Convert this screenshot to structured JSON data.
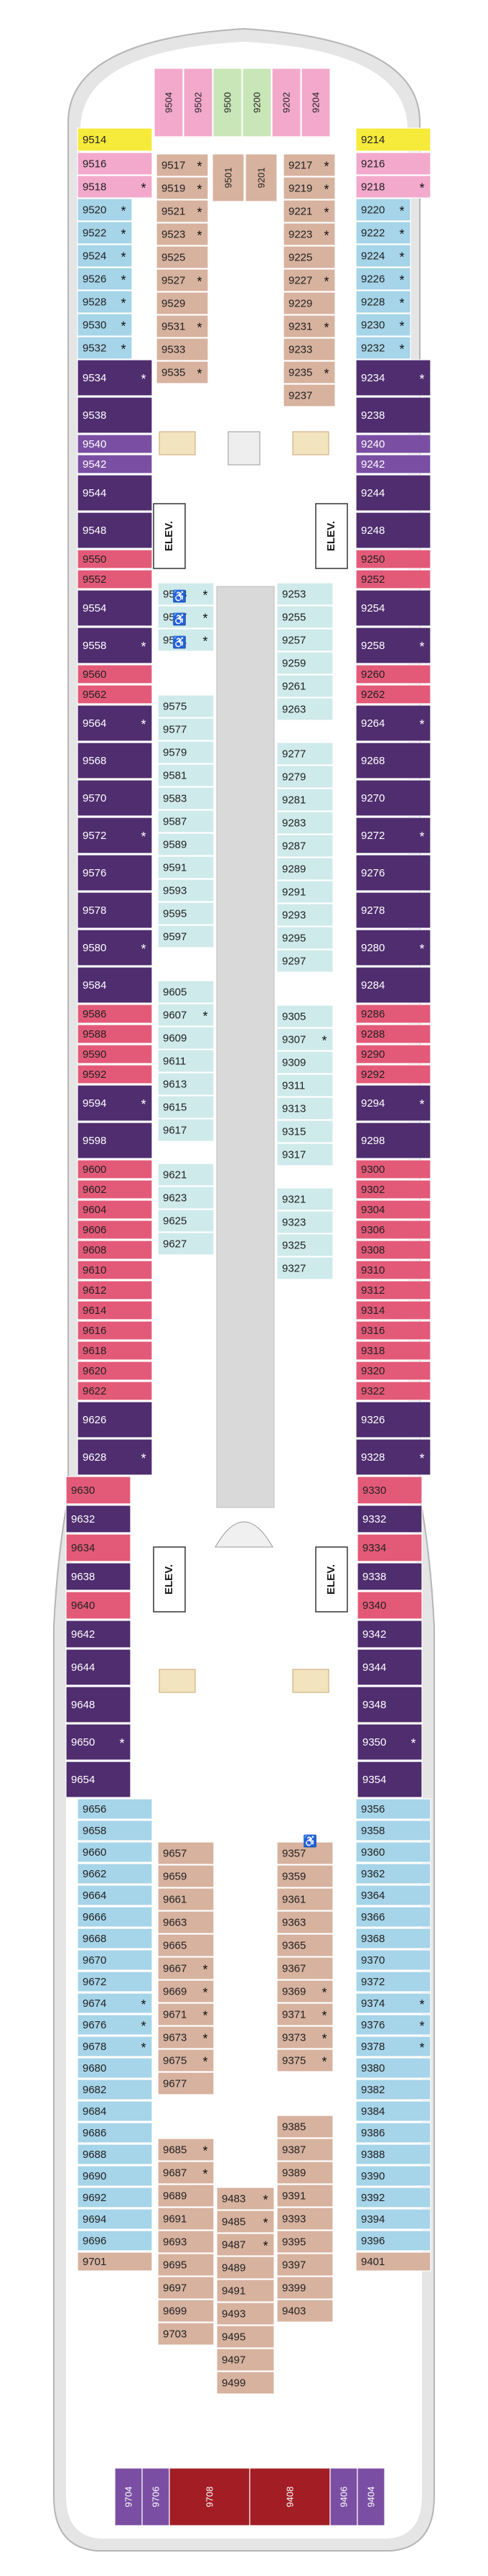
{
  "legend_colors": {
    "suite_purple": "#4f2d6f",
    "balcony_pink": "#e35a78",
    "oceanview_blue": "#a6d4e8",
    "interior_tan": "#d7b29f",
    "interior_light": "#cfeaea",
    "suite_violet": "#7a4fa3",
    "special_pink": "#f2a9cc",
    "special_green": "#c9e6b8",
    "special_yellow": "#f6ea3a",
    "special_red": "#a31d24",
    "hull_gray": "#e5e5e5"
  },
  "icon_names": [
    "accessible-icon",
    "suite-door-icon",
    "connecting-arrow-icon",
    "star-marker"
  ],
  "elevator_label": "ELEV.",
  "forward": {
    "front_cabins": [
      "9504",
      "9502",
      "9500",
      "9200",
      "9202",
      "9204"
    ],
    "yellow": [
      "9514",
      "9214"
    ],
    "port_pink": [
      "9516",
      "9518"
    ],
    "stbd_pink": [
      "9216",
      "9218"
    ],
    "port_blue": [
      "9520",
      "9522",
      "9524",
      "9526",
      "9528",
      "9530",
      "9532"
    ],
    "stbd_blue": [
      "9220",
      "9222",
      "9224",
      "9226",
      "9228",
      "9230",
      "9232"
    ],
    "inner_port": [
      "9517",
      "9519",
      "9521",
      "9523",
      "9525",
      "9527",
      "9529",
      "9531",
      "9533",
      "9535"
    ],
    "inner_stbd": [
      "9217",
      "9219",
      "9221",
      "9223",
      "9225",
      "9227",
      "9229",
      "9231",
      "9233",
      "9235",
      "9237"
    ],
    "center": [
      "9501",
      "9201"
    ]
  },
  "port_outer": [
    "9534",
    "9538",
    "9540",
    "9542",
    "9544",
    "9548",
    "9550",
    "9552",
    "9554",
    "9558",
    "9560",
    "9562",
    "9564",
    "9568",
    "9570",
    "9572",
    "9576",
    "9578",
    "9580",
    "9584",
    "9586",
    "9588",
    "9590",
    "9592",
    "9594",
    "9598",
    "9600",
    "9602",
    "9604",
    "9606",
    "9608",
    "9610",
    "9612",
    "9614",
    "9616",
    "9618",
    "9620",
    "9622",
    "9626",
    "9628",
    "9630",
    "9632",
    "9634",
    "9638",
    "9640",
    "9642",
    "9644",
    "9648",
    "9650",
    "9654",
    "9656",
    "9658",
    "9660",
    "9662",
    "9664",
    "9666",
    "9668",
    "9670",
    "9672",
    "9674",
    "9676",
    "9678",
    "9680",
    "9682",
    "9684",
    "9686",
    "9688",
    "9690",
    "9692",
    "9694",
    "9696",
    "9701"
  ],
  "stbd_outer": [
    "9234",
    "9238",
    "9240",
    "9242",
    "9244",
    "9248",
    "9250",
    "9252",
    "9254",
    "9258",
    "9260",
    "9262",
    "9264",
    "9268",
    "9270",
    "9272",
    "9276",
    "9278",
    "9280",
    "9284",
    "9286",
    "9288",
    "9290",
    "9292",
    "9294",
    "9298",
    "9300",
    "9302",
    "9304",
    "9306",
    "9308",
    "9310",
    "9312",
    "9314",
    "9316",
    "9318",
    "9320",
    "9322",
    "9326",
    "9328",
    "9330",
    "9332",
    "9334",
    "9338",
    "9340",
    "9342",
    "9344",
    "9348",
    "9350",
    "9354",
    "9356",
    "9358",
    "9360",
    "9362",
    "9364",
    "9366",
    "9368",
    "9370",
    "9372",
    "9374",
    "9376",
    "9378",
    "9380",
    "9382",
    "9384",
    "9386",
    "9388",
    "9390",
    "9392",
    "9394",
    "9396",
    "9401"
  ],
  "port_inner_mid": [
    "9553",
    "9557",
    "9561",
    "9575",
    "9577",
    "9579",
    "9581",
    "9583",
    "9587",
    "9589",
    "9591",
    "9593",
    "9595",
    "9597",
    "9605",
    "9607",
    "9609",
    "9611",
    "9613",
    "9615",
    "9617",
    "9621",
    "9623",
    "9625",
    "9627"
  ],
  "stbd_inner_mid": [
    "9253",
    "9255",
    "9257",
    "9259",
    "9261",
    "9263",
    "9277",
    "9279",
    "9281",
    "9283",
    "9287",
    "9289",
    "9291",
    "9293",
    "9295",
    "9297",
    "9305",
    "9307",
    "9309",
    "9311",
    "9313",
    "9315",
    "9317",
    "9321",
    "9323",
    "9325",
    "9327"
  ],
  "aft_inner_port": [
    "9657",
    "9659",
    "9661",
    "9663",
    "9665",
    "9667",
    "9669",
    "9671",
    "9673",
    "9675",
    "9677",
    "9685",
    "9687",
    "9689",
    "9691",
    "9693",
    "9695",
    "9697",
    "9699",
    "9703"
  ],
  "aft_inner_stbd": [
    "9357",
    "9359",
    "9361",
    "9363",
    "9365",
    "9367",
    "9369",
    "9371",
    "9373",
    "9375",
    "9385",
    "9387",
    "9389",
    "9391",
    "9393",
    "9395",
    "9397",
    "9399",
    "9403"
  ],
  "aft_center": [
    "9483",
    "9485",
    "9487",
    "9489",
    "9491",
    "9493",
    "9495",
    "9497",
    "9499"
  ],
  "stern": [
    "9704",
    "9706",
    "9708",
    "9408",
    "9406",
    "9404"
  ]
}
